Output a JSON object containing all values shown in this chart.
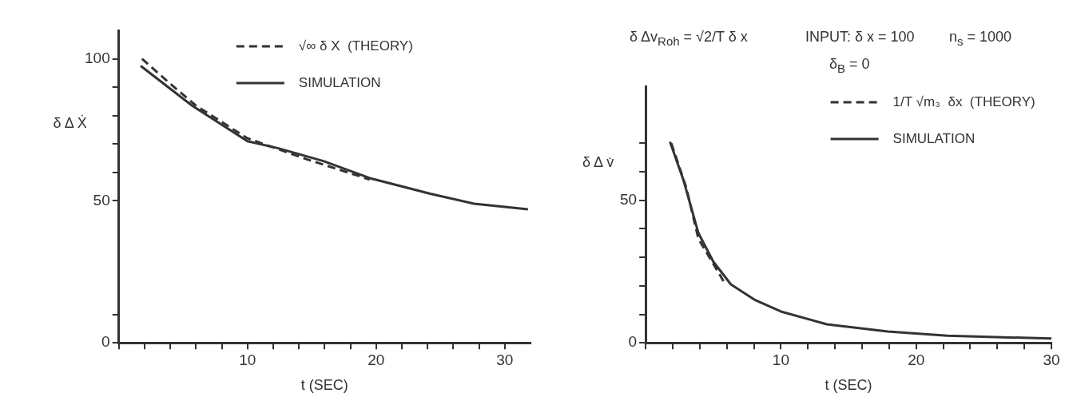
{
  "chart_data": [
    {
      "type": "line",
      "xlabel": "t (SEC)",
      "ylabel": "δ Δ Ẋ",
      "xlim": [
        0,
        32
      ],
      "ylim": [
        0,
        110
      ],
      "xticks": [
        {
          "value": 0,
          "label": null
        },
        {
          "value": 2,
          "label": null
        },
        {
          "value": 4,
          "label": null
        },
        {
          "value": 6,
          "label": null
        },
        {
          "value": 8,
          "label": null
        },
        10,
        {
          "value": 12,
          "label": null
        },
        {
          "value": 14,
          "label": null
        },
        {
          "value": 16,
          "label": null
        },
        {
          "value": 18,
          "label": null
        },
        20,
        {
          "value": 22,
          "label": null
        },
        {
          "value": 24,
          "label": null
        },
        {
          "value": 26,
          "label": null
        },
        {
          "value": 28,
          "label": null
        },
        30
      ],
      "yticks": [
        0,
        {
          "value": 10,
          "label": null
        },
        50,
        {
          "value": 60,
          "label": null
        },
        {
          "value": 70,
          "label": null
        },
        {
          "value": 80,
          "label": null
        },
        {
          "value": 90,
          "label": null
        },
        100
      ],
      "grid": false,
      "marker": "none",
      "legend": "top",
      "series": [
        {
          "name": "√∞ δ X  (THEORY)",
          "color": "#333333",
          "line_style": "dashed",
          "x": [
            1.8,
            3.8,
            6,
            10,
            14.7,
            19.5
          ],
          "values": [
            100,
            92,
            83.5,
            72,
            64.5,
            57.5
          ]
        },
        {
          "name": "SIMULATION",
          "color": "#333333",
          "line_style": "solid",
          "x": [
            1.7,
            5.7,
            10,
            12.4,
            15.9,
            19.5,
            24.2,
            27.6,
            31.8
          ],
          "values": [
            97.5,
            83.5,
            71,
            68.5,
            64,
            58,
            52.5,
            49,
            47
          ]
        }
      ]
    },
    {
      "type": "line",
      "xlabel": "t (SEC)",
      "ylabel": "δ Δ v̇",
      "xlim": [
        0,
        30
      ],
      "ylim": [
        0,
        90
      ],
      "xticks": [
        {
          "value": 0,
          "label": null
        },
        {
          "value": 2,
          "label": null
        },
        {
          "value": 4,
          "label": null
        },
        {
          "value": 6,
          "label": null
        },
        {
          "value": 8,
          "label": null
        },
        10,
        {
          "value": 12,
          "label": null
        },
        {
          "value": 14,
          "label": null
        },
        {
          "value": 16,
          "label": null
        },
        {
          "value": 18,
          "label": null
        },
        20,
        {
          "value": 22,
          "label": null
        },
        {
          "value": 24,
          "label": null
        },
        {
          "value": 26,
          "label": null
        },
        {
          "value": 28,
          "label": null
        },
        30
      ],
      "yticks": [
        0,
        {
          "value": 10,
          "label": null
        },
        {
          "value": 20,
          "label": null
        },
        {
          "value": 30,
          "label": null
        },
        {
          "value": 40,
          "label": null
        },
        50,
        {
          "value": 60,
          "label": null
        },
        {
          "value": 70,
          "label": null
        }
      ],
      "grid": false,
      "marker": "none",
      "legend": "top right",
      "annotations": [
        "δ Δv$_{Roh}$ = √2/T δ x",
        "INPUT:  δ x = 100",
        "n$_{s}$ = 1000",
        "δ$_{B}$ = 0"
      ],
      "series": [
        {
          "name": "1/T √m₃  δx  (THEORY)",
          "color": "#333333",
          "line_style": "dashed",
          "x": [
            1.9,
            3,
            3.9,
            5.9
          ],
          "values": [
            70,
            54.5,
            36.5,
            20.5
          ]
        },
        {
          "name": "SIMULATION",
          "color": "#333333",
          "line_style": "solid",
          "x": [
            1.8,
            2.8,
            3.9,
            5,
            6.3,
            8.1,
            10,
            13.4,
            17.9,
            22.3,
            30
          ],
          "values": [
            70.5,
            57,
            38.5,
            28.5,
            20.5,
            15,
            11,
            6.5,
            4,
            2.5,
            1.5
          ]
        }
      ]
    }
  ]
}
